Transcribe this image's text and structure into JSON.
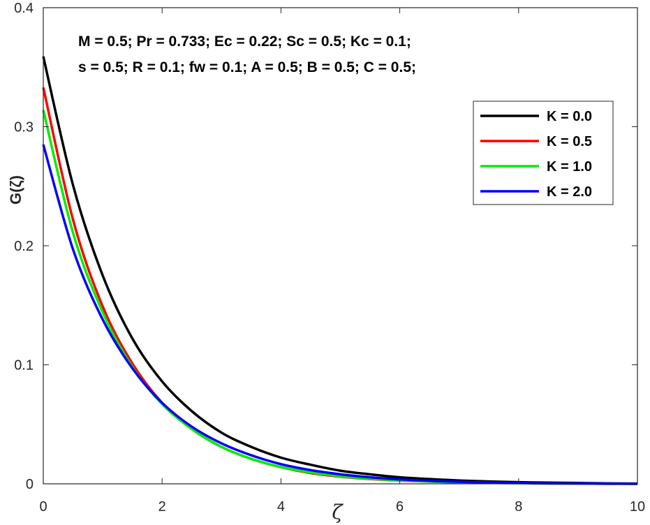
{
  "chart_data": {
    "type": "line",
    "title": "",
    "xlabel": "ζ",
    "ylabel": "G(ζ)",
    "xlim": [
      0,
      10
    ],
    "ylim": [
      0,
      0.4
    ],
    "xticks": [
      "0",
      "2",
      "4",
      "6",
      "8",
      "10"
    ],
    "yticks": [
      "0",
      "0.1",
      "0.2",
      "0.3",
      "0.4"
    ],
    "grid": false,
    "legend_position": "top-right",
    "annotations": [
      "M = 0.5; Pr = 0.733; Ec = 0.22; Sc = 0.5; Kc = 0.1;",
      "s = 0.5; R = 0.1; fw = 0.1; A = 0.5; B = 0.5; C = 0.5;"
    ],
    "x": [
      0,
      0.5,
      1,
      1.5,
      2,
      2.5,
      3,
      3.5,
      4,
      4.5,
      5,
      5.5,
      6,
      6.5,
      7,
      7.5,
      8,
      8.5,
      9,
      9.5,
      10
    ],
    "series": [
      {
        "name": "K = 0.0",
        "color": "#000000",
        "values": [
          0.359,
          0.251,
          0.175,
          0.122,
          0.086,
          0.061,
          0.043,
          0.031,
          0.022,
          0.016,
          0.011,
          0.008,
          0.0055,
          0.004,
          0.0028,
          0.002,
          0.0014,
          0.001,
          0.0007,
          0.0004,
          0.0002
        ]
      },
      {
        "name": "K = 0.5",
        "color": "#ff0000",
        "values": [
          0.333,
          0.222,
          0.149,
          0.101,
          0.068,
          0.046,
          0.031,
          0.021,
          0.014,
          0.009,
          0.006,
          0.004,
          0.0027,
          0.0018,
          0.0012,
          0.0008,
          0.0005,
          0.0003,
          0.0002,
          0.0001,
          0.0
        ]
      },
      {
        "name": "K = 1.0",
        "color": "#00ee00",
        "values": [
          0.314,
          0.211,
          0.144,
          0.098,
          0.067,
          0.046,
          0.031,
          0.021,
          0.014,
          0.0095,
          0.0064,
          0.0043,
          0.0029,
          0.0019,
          0.0013,
          0.0008,
          0.0005,
          0.0003,
          0.0002,
          0.0001,
          0.0
        ]
      },
      {
        "name": "K = 2.0",
        "color": "#0000ff",
        "values": [
          0.285,
          0.197,
          0.138,
          0.097,
          0.068,
          0.048,
          0.034,
          0.024,
          0.0165,
          0.0115,
          0.008,
          0.0055,
          0.0037,
          0.0025,
          0.0017,
          0.0011,
          0.0007,
          0.0004,
          0.0002,
          0.0001,
          0.0
        ]
      }
    ]
  }
}
